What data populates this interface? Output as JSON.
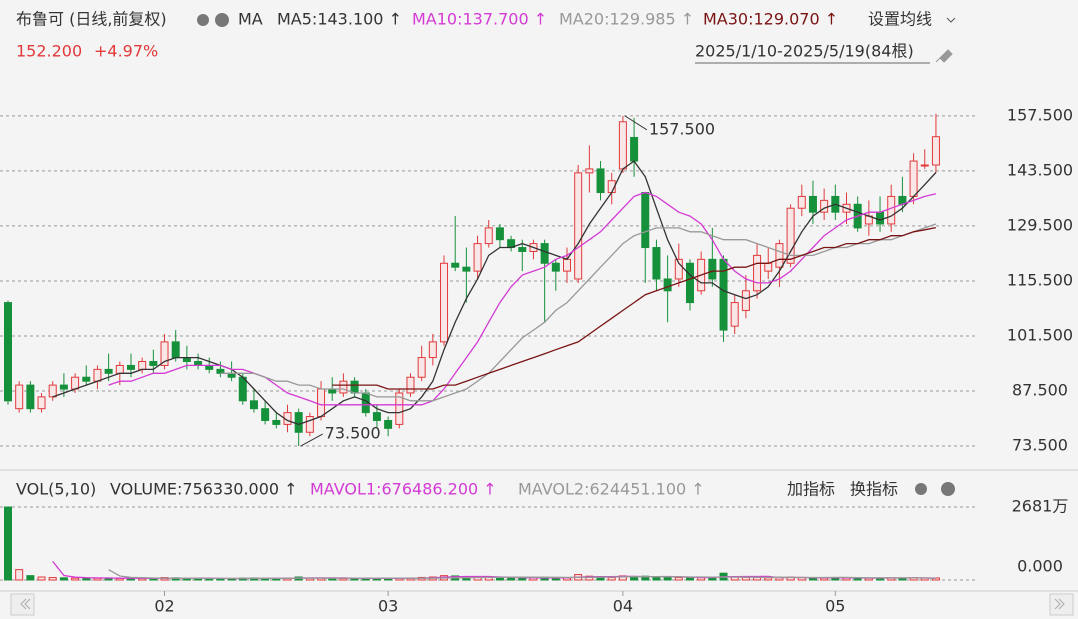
{
  "header": {
    "title": "布鲁可 (日线,前复权)",
    "ma": "MA",
    "ma_labels": [
      {
        "text": "MA5:143.100 ↑",
        "color": "#333333"
      },
      {
        "text": "MA10:137.700 ↑",
        "color": "#d43ad4"
      },
      {
        "text": "MA20:129.985 ↑",
        "color": "#999999"
      },
      {
        "text": "MA30:129.070 ↑",
        "color": "#7a1414"
      }
    ],
    "setting": "设置均线",
    "price": "152.200",
    "change": "+4.97%",
    "range": "2025/1/10-2025/5/19(84根)"
  },
  "volume_header": {
    "title": "VOL(5,10)",
    "labels": [
      {
        "text": "VOLUME:756330.000 ↑",
        "color": "#333333"
      },
      {
        "text": "MAVOL1:676486.200 ↑",
        "color": "#d43ad4"
      },
      {
        "text": "MAVOL2:624451.100 ↑",
        "color": "#999999"
      }
    ],
    "add": "加指标",
    "switch": "换指标"
  },
  "chart_data": [
    {
      "type": "candlestick",
      "up_color": "#e2393b",
      "down_color": "#16913b",
      "grid": true,
      "ylim": [
        67.4,
        162.3
      ],
      "yticks": [
        {
          "value": 73.5,
          "label": "73.500"
        },
        {
          "value": 87.5,
          "label": "87.500"
        },
        {
          "value": 101.5,
          "label": "101.500"
        },
        {
          "value": 115.5,
          "label": "115.500"
        },
        {
          "value": 129.5,
          "label": "129.500"
        },
        {
          "value": 143.5,
          "label": "143.500"
        },
        {
          "value": 157.5,
          "label": "157.500"
        }
      ],
      "xticks": [
        {
          "value": 14,
          "label": "02"
        },
        {
          "value": 34,
          "label": "03"
        },
        {
          "value": 55,
          "label": "04"
        },
        {
          "value": 74,
          "label": "05"
        }
      ],
      "annotations": [
        {
          "label": "157.500",
          "index": 55,
          "value": 157.5
        },
        {
          "label": "73.500",
          "index": 26,
          "value": 73.5
        }
      ],
      "open": [
        110,
        83,
        89,
        83,
        86,
        89,
        88,
        91,
        90,
        93,
        92,
        94,
        93,
        95,
        94,
        100,
        96,
        95,
        94,
        93,
        92,
        91,
        85,
        83,
        80,
        79,
        82,
        77,
        81,
        88,
        87,
        90,
        87,
        82,
        80,
        79,
        87,
        91,
        96,
        100,
        120,
        119,
        118,
        125,
        129,
        126,
        124,
        123,
        125,
        120,
        118,
        116,
        143,
        144,
        138,
        144,
        152,
        138,
        124,
        116,
        116,
        120,
        113,
        121,
        121,
        104,
        108,
        113,
        118,
        119,
        120,
        134,
        137,
        133,
        137,
        133,
        135,
        130,
        133,
        130,
        137,
        137,
        145,
        145
      ],
      "high": [
        110.5,
        90,
        90,
        87,
        90,
        92,
        92,
        94,
        94,
        97,
        95,
        97,
        96,
        98,
        102,
        103,
        99,
        97,
        96,
        95,
        95,
        92,
        88,
        85,
        82,
        84,
        83,
        82,
        90,
        91,
        92,
        91,
        88,
        84,
        81,
        88,
        92,
        99,
        102,
        122,
        132,
        124,
        127,
        131,
        130,
        127,
        126,
        126,
        126,
        121,
        124,
        145,
        150,
        146,
        143,
        157.5,
        157,
        138,
        126,
        122,
        125,
        121,
        123,
        129,
        122,
        112,
        117,
        125,
        124,
        126,
        135,
        140,
        141,
        139,
        140,
        138,
        137,
        136,
        137,
        140,
        142,
        148,
        149,
        158
      ],
      "low": [
        84,
        82,
        82,
        82,
        85,
        86,
        87,
        89,
        88,
        90,
        89,
        91,
        92,
        92,
        93,
        95,
        93,
        93,
        92,
        91,
        90,
        84,
        82,
        79,
        78,
        77,
        73.5,
        76,
        80,
        85,
        86,
        86,
        81,
        78,
        76,
        78,
        86,
        90,
        94,
        99,
        118,
        110,
        116,
        124,
        124,
        123,
        118,
        121,
        105,
        113,
        115,
        115,
        138,
        136,
        135,
        143,
        142,
        115,
        113,
        105,
        114,
        108,
        112,
        114,
        100,
        102,
        106,
        111,
        116,
        114,
        119,
        132,
        130,
        131,
        131,
        130,
        128,
        127,
        128,
        128,
        133,
        135,
        144,
        143
      ],
      "close": [
        85,
        89,
        83,
        86,
        89,
        88,
        91,
        90,
        93,
        92,
        94,
        93,
        95,
        94,
        100,
        96,
        95,
        94,
        93,
        92,
        91,
        85,
        83,
        80,
        79,
        82,
        77,
        81,
        88,
        87,
        90,
        87,
        82,
        80,
        78,
        87,
        91,
        96,
        100,
        120,
        119,
        118,
        125,
        129,
        126,
        124,
        123,
        125,
        120,
        118,
        121,
        143,
        144,
        138,
        141,
        156,
        146,
        124,
        116,
        113,
        121,
        110,
        121,
        116,
        103,
        110,
        113,
        122,
        120,
        125,
        134,
        137,
        133,
        136,
        133,
        135,
        129,
        132,
        130,
        137,
        135,
        146,
        145,
        152.2
      ],
      "series": [
        {
          "name": "MA5",
          "color": "#333333",
          "values": [
            null,
            null,
            null,
            null,
            86,
            87,
            88,
            89,
            90,
            91,
            92,
            92,
            93,
            93,
            95,
            96,
            96,
            96,
            95,
            94,
            93,
            91,
            88,
            85,
            82,
            80,
            79,
            80,
            81,
            83,
            85,
            86,
            85,
            83,
            82,
            82,
            83,
            86,
            90,
            98,
            105,
            111,
            116,
            122,
            124,
            124,
            125,
            124,
            123,
            122,
            121,
            125,
            130,
            134,
            138,
            144,
            146,
            142,
            134,
            126,
            120,
            117,
            115,
            115,
            113,
            112,
            111,
            112,
            114,
            118,
            123,
            128,
            132,
            134,
            135,
            134,
            133,
            132,
            131,
            132,
            134,
            137,
            140,
            143.1
          ]
        },
        {
          "name": "MA10",
          "color": "#d43ad4",
          "values": [
            null,
            null,
            null,
            null,
            null,
            null,
            null,
            null,
            null,
            89,
            90,
            90,
            91,
            92,
            92,
            93,
            94,
            94,
            94,
            94,
            93,
            93,
            92,
            91,
            89,
            87,
            86,
            85,
            84,
            84,
            84,
            84,
            84,
            84,
            84,
            84,
            84,
            84,
            85,
            88,
            92,
            96,
            100,
            105,
            110,
            114,
            117,
            118,
            119,
            121,
            122,
            124,
            126,
            128,
            131,
            134,
            137,
            138,
            137,
            135,
            133,
            132,
            130,
            126,
            121,
            118,
            116,
            115,
            115,
            116,
            118,
            121,
            124,
            127,
            129,
            131,
            132,
            133,
            133,
            134,
            135,
            136,
            137,
            137.7
          ]
        },
        {
          "name": "MA20",
          "color": "#999999",
          "values": [
            null,
            null,
            null,
            null,
            null,
            null,
            null,
            null,
            null,
            null,
            null,
            null,
            null,
            null,
            null,
            null,
            null,
            null,
            null,
            92,
            92,
            92,
            92,
            91,
            90,
            90,
            89,
            89,
            88,
            88,
            88,
            87,
            87,
            86,
            86,
            86,
            85,
            85,
            85,
            86,
            87,
            88,
            90,
            92,
            95,
            98,
            101,
            103,
            105,
            108,
            110,
            113,
            116,
            119,
            122,
            125,
            127,
            128,
            129,
            129,
            129,
            128,
            128,
            127,
            126,
            126,
            126,
            125,
            124,
            123,
            122,
            122,
            122,
            123,
            124,
            124,
            125,
            125,
            126,
            126,
            127,
            128,
            129,
            129.985
          ]
        },
        {
          "name": "MA30",
          "color": "#7a1414",
          "values": [
            null,
            null,
            null,
            null,
            null,
            null,
            null,
            null,
            null,
            null,
            null,
            null,
            null,
            null,
            null,
            null,
            null,
            null,
            null,
            null,
            null,
            null,
            null,
            null,
            null,
            null,
            null,
            null,
            null,
            89,
            89,
            89,
            89,
            89,
            88,
            88,
            88,
            88,
            88,
            89,
            89,
            90,
            91,
            92,
            93,
            94,
            95,
            96,
            97,
            98,
            99,
            100,
            102,
            104,
            106,
            108,
            110,
            112,
            113,
            114,
            115,
            116,
            117,
            118,
            118,
            119,
            119,
            120,
            120,
            121,
            121,
            122,
            123,
            124,
            124,
            125,
            125,
            126,
            126,
            127,
            127,
            128,
            128.5,
            129.07
          ]
        }
      ]
    },
    {
      "type": "volume",
      "ylim": [
        0,
        26810000
      ],
      "yticks": [
        {
          "value": 26810000,
          "label": "2681万"
        },
        {
          "value": 0,
          "label": "0.000"
        }
      ],
      "values": [
        26810000,
        3800000,
        1600000,
        1100000,
        900000,
        800000,
        700000,
        750000,
        650000,
        700000,
        600000,
        650000,
        550000,
        600000,
        900000,
        800000,
        600000,
        550000,
        500000,
        500000,
        550000,
        700000,
        750000,
        600000,
        550000,
        650000,
        1100000,
        700000,
        750000,
        600000,
        550000,
        600000,
        650000,
        550000,
        500000,
        700000,
        750000,
        950000,
        1100000,
        1600000,
        1500000,
        1200000,
        1100000,
        950000,
        800000,
        700000,
        700000,
        750000,
        1000000,
        800000,
        750000,
        2000000,
        1400000,
        1100000,
        900000,
        1500000,
        1300000,
        1400000,
        1000000,
        1100000,
        900000,
        800000,
        850000,
        900000,
        2500000,
        1200000,
        950000,
        900000,
        800000,
        850000,
        1100000,
        950000,
        800000,
        700000,
        750000,
        700000,
        650000,
        700000,
        750000,
        800000,
        750000,
        850000,
        700000,
        756330
      ],
      "series": [
        {
          "name": "MAVOL1",
          "color": "#d43ad4",
          "values": [
            null,
            null,
            null,
            null,
            6840000,
            1640000,
            1020000,
            850000,
            760000,
            720000,
            680000,
            650000,
            620000,
            620000,
            660000,
            700000,
            690000,
            690000,
            670000,
            580000,
            540000,
            560000,
            600000,
            620000,
            630000,
            640000,
            730000,
            760000,
            770000,
            760000,
            760000,
            680000,
            640000,
            610000,
            570000,
            590000,
            630000,
            700000,
            810000,
            1020000,
            1180000,
            1270000,
            1300000,
            1270000,
            1110000,
            950000,
            890000,
            780000,
            790000,
            790000,
            800000,
            1060000,
            1190000,
            1210000,
            1230000,
            1320000,
            1320000,
            1260000,
            1260000,
            1280000,
            1180000,
            1060000,
            930000,
            910000,
            1190000,
            1250000,
            1270000,
            1270000,
            1310000,
            880000,
            920000,
            920000,
            840000,
            840000,
            860000,
            820000,
            760000,
            700000,
            710000,
            720000,
            730000,
            770000,
            770000,
            676486.2
          ]
        },
        {
          "name": "MAVOL2",
          "color": "#999999",
          "values": [
            null,
            null,
            null,
            null,
            null,
            null,
            null,
            null,
            null,
            3790000,
            1470000,
            970000,
            850000,
            750000,
            700000,
            690000,
            650000,
            620000,
            600000,
            590000,
            590000,
            600000,
            620000,
            610000,
            600000,
            620000,
            660000,
            650000,
            670000,
            670000,
            680000,
            680000,
            690000,
            680000,
            680000,
            680000,
            660000,
            650000,
            660000,
            740000,
            810000,
            860000,
            930000,
            970000,
            1000000,
            1030000,
            1040000,
            1020000,
            1000000,
            980000,
            960000,
            960000,
            990000,
            1020000,
            1070000,
            1130000,
            1200000,
            1220000,
            1220000,
            1250000,
            1160000,
            1110000,
            1100000,
            1060000,
            1080000,
            1080000,
            1040000,
            980000,
            960000,
            1010000,
            980000,
            930000,
            930000,
            900000,
            960000,
            950000,
            880000,
            820000,
            800000,
            800000,
            780000,
            770000,
            760000,
            624451.1
          ]
        }
      ]
    }
  ]
}
